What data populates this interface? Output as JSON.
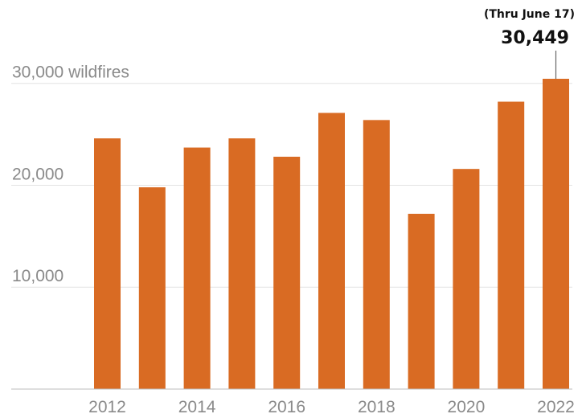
{
  "chart_data": {
    "type": "bar",
    "categories": [
      "2012",
      "2013",
      "2014",
      "2015",
      "2016",
      "2017",
      "2018",
      "2019",
      "2020",
      "2021",
      "2022"
    ],
    "values": [
      24600,
      19800,
      23700,
      24600,
      22800,
      27100,
      26400,
      17200,
      21600,
      28200,
      30449
    ],
    "ylim": [
      0,
      30449
    ],
    "y_ticks": [
      {
        "value": 10000,
        "label": "10,000"
      },
      {
        "value": 20000,
        "label": "20,000"
      },
      {
        "value": 30000,
        "label": "30,000 wildfires"
      }
    ],
    "x_tick_labels": [
      "2012",
      "2014",
      "2016",
      "2018",
      "2020",
      "2022"
    ],
    "bar_color": "#d96b23",
    "grid": true,
    "annotation": {
      "category": "2022",
      "note": "(Thru June 17)",
      "value_label": "30,449"
    }
  }
}
